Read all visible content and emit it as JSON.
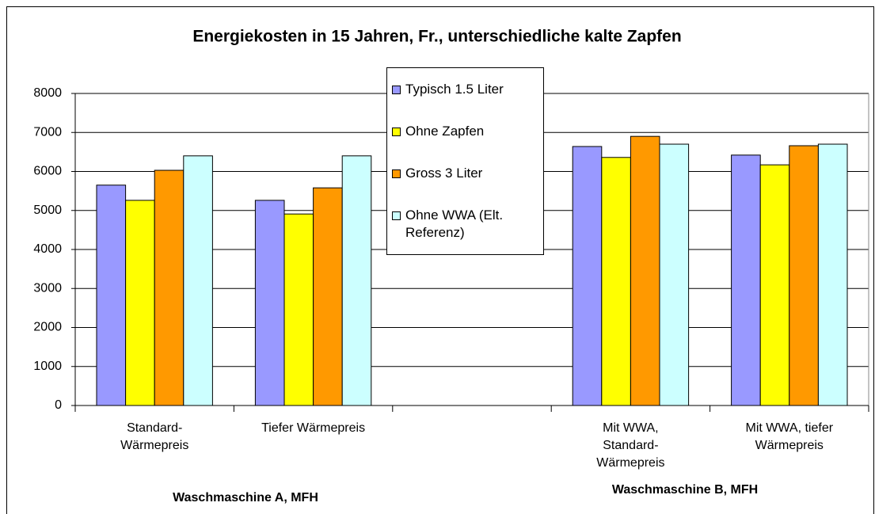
{
  "chart_data": {
    "type": "bar",
    "title": "Energiekosten in 15 Jahren, Fr., unterschiedliche kalte Zapfen",
    "categories": [
      "Standard-Wärmepreis",
      "Tiefer Wärmepreis",
      null,
      "Mit WWA, Standard-Wärmepreis",
      "Mit WWA, tiefer Wärmepreis"
    ],
    "group_labels": [
      "Waschmaschine A, MFH",
      "Waschmaschine B, MFH"
    ],
    "series": [
      {
        "name": "Typisch 1.5 Liter",
        "color": "#9999ff",
        "values": [
          5650,
          5260,
          null,
          6640,
          6420
        ]
      },
      {
        "name": "Ohne Zapfen",
        "color": "#ffff00",
        "values": [
          5260,
          4910,
          null,
          6360,
          6170
        ]
      },
      {
        "name": "Gross 3 Liter",
        "color": "#ff9900",
        "values": [
          6030,
          5580,
          null,
          6900,
          6660
        ]
      },
      {
        "name": "Ohne WWA (Elt. Referenz)",
        "color": "#ccffff",
        "values": [
          6400,
          6400,
          null,
          6700,
          6700
        ]
      }
    ],
    "ylim": [
      0,
      8000
    ],
    "yticks": [
      0,
      1000,
      2000,
      3000,
      4000,
      5000,
      6000,
      7000,
      8000
    ],
    "grid": true,
    "legend": "top"
  }
}
